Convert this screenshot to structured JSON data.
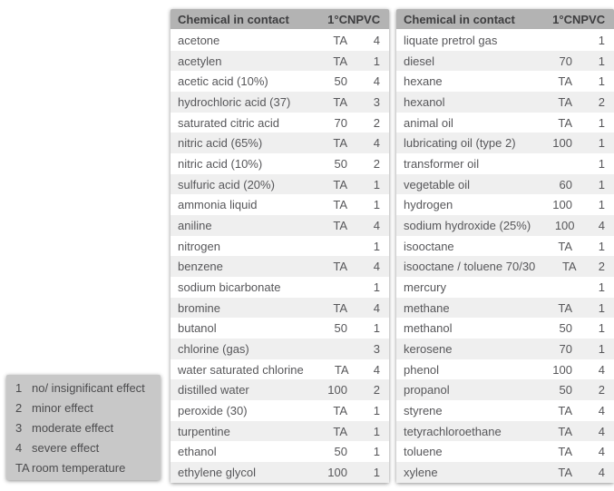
{
  "colors": {
    "header_bg": "#b3b3b3",
    "legend_bg": "#c8c8c8",
    "row_alt_bg": "#efefef",
    "row_bg": "#ffffff",
    "text": "#57575a",
    "header_text": "#3d3d3f"
  },
  "legend": {
    "items": [
      {
        "key": "1",
        "label": "no/ insignificant effect"
      },
      {
        "key": "2",
        "label": "minor effect"
      },
      {
        "key": "3",
        "label": "moderate effect"
      },
      {
        "key": "4",
        "label": "severe effect"
      },
      {
        "key": "TA",
        "label": "room temperature"
      }
    ]
  },
  "tables": [
    {
      "headers": [
        "Chemical in contact",
        "1°C",
        "NPVC"
      ],
      "rows": [
        {
          "chemical": "acetone",
          "temp": "TA",
          "npvc": "4"
        },
        {
          "chemical": "acetylen",
          "temp": "TA",
          "npvc": "1"
        },
        {
          "chemical": "acetic acid (10%)",
          "temp": "50",
          "npvc": "4"
        },
        {
          "chemical": "hydrochloric acid (37)",
          "temp": "TA",
          "npvc": "3"
        },
        {
          "chemical": "saturated citric acid",
          "temp": "70",
          "npvc": "2"
        },
        {
          "chemical": "nitric acid (65%)",
          "temp": "TA",
          "npvc": "4"
        },
        {
          "chemical": "nitric acid (10%)",
          "temp": "50",
          "npvc": "2"
        },
        {
          "chemical": "sulfuric acid (20%)",
          "temp": "TA",
          "npvc": "1"
        },
        {
          "chemical": "ammonia liquid",
          "temp": "TA",
          "npvc": "1"
        },
        {
          "chemical": "aniline",
          "temp": "TA",
          "npvc": "4"
        },
        {
          "chemical": "nitrogen",
          "temp": "",
          "npvc": "1"
        },
        {
          "chemical": "benzene",
          "temp": "TA",
          "npvc": "4"
        },
        {
          "chemical": "sodium bicarbonate",
          "temp": "",
          "npvc": "1"
        },
        {
          "chemical": "bromine",
          "temp": "TA",
          "npvc": "4"
        },
        {
          "chemical": "butanol",
          "temp": "50",
          "npvc": "1"
        },
        {
          "chemical": "chlorine (gas)",
          "temp": "",
          "npvc": "3"
        },
        {
          "chemical": "water saturated chlorine",
          "temp": "TA",
          "npvc": "4"
        },
        {
          "chemical": "distilled water",
          "temp": "100",
          "npvc": "2"
        },
        {
          "chemical": "peroxide (30)",
          "temp": "TA",
          "npvc": "1"
        },
        {
          "chemical": "turpentine",
          "temp": "TA",
          "npvc": "1"
        },
        {
          "chemical": "ethanol",
          "temp": "50",
          "npvc": "1"
        },
        {
          "chemical": "ethylene glycol",
          "temp": "100",
          "npvc": "1"
        }
      ]
    },
    {
      "headers": [
        "Chemical in contact",
        "1°C",
        "NPVC"
      ],
      "rows": [
        {
          "chemical": "liquate pretrol gas",
          "temp": "",
          "npvc": "1"
        },
        {
          "chemical": "diesel",
          "temp": "70",
          "npvc": "1"
        },
        {
          "chemical": "hexane",
          "temp": "TA",
          "npvc": "1"
        },
        {
          "chemical": "hexanol",
          "temp": "TA",
          "npvc": "2"
        },
        {
          "chemical": "animal oil",
          "temp": "TA",
          "npvc": "1"
        },
        {
          "chemical": "lubricating oil (type 2)",
          "temp": "100",
          "npvc": "1"
        },
        {
          "chemical": "transformer oil",
          "temp": "",
          "npvc": "1"
        },
        {
          "chemical": "vegetable oil",
          "temp": "60",
          "npvc": "1"
        },
        {
          "chemical": "hydrogen",
          "temp": "100",
          "npvc": "1"
        },
        {
          "chemical": "sodium hydroxide (25%)",
          "temp": "100",
          "npvc": "4"
        },
        {
          "chemical": "isooctane",
          "temp": "TA",
          "npvc": "1"
        },
        {
          "chemical": "isooctane / toluene 70/30",
          "temp": "TA",
          "npvc": "2"
        },
        {
          "chemical": "mercury",
          "temp": "",
          "npvc": "1"
        },
        {
          "chemical": "methane",
          "temp": "TA",
          "npvc": "1"
        },
        {
          "chemical": "methanol",
          "temp": "50",
          "npvc": "1"
        },
        {
          "chemical": "kerosene",
          "temp": "70",
          "npvc": "1"
        },
        {
          "chemical": "phenol",
          "temp": "100",
          "npvc": "4"
        },
        {
          "chemical": "propanol",
          "temp": "50",
          "npvc": "2"
        },
        {
          "chemical": "styrene",
          "temp": "TA",
          "npvc": "4"
        },
        {
          "chemical": "tetyrachloroethane",
          "temp": "TA",
          "npvc": "4"
        },
        {
          "chemical": "toluene",
          "temp": "TA",
          "npvc": "4"
        },
        {
          "chemical": "xylene",
          "temp": "TA",
          "npvc": "4"
        }
      ]
    }
  ]
}
